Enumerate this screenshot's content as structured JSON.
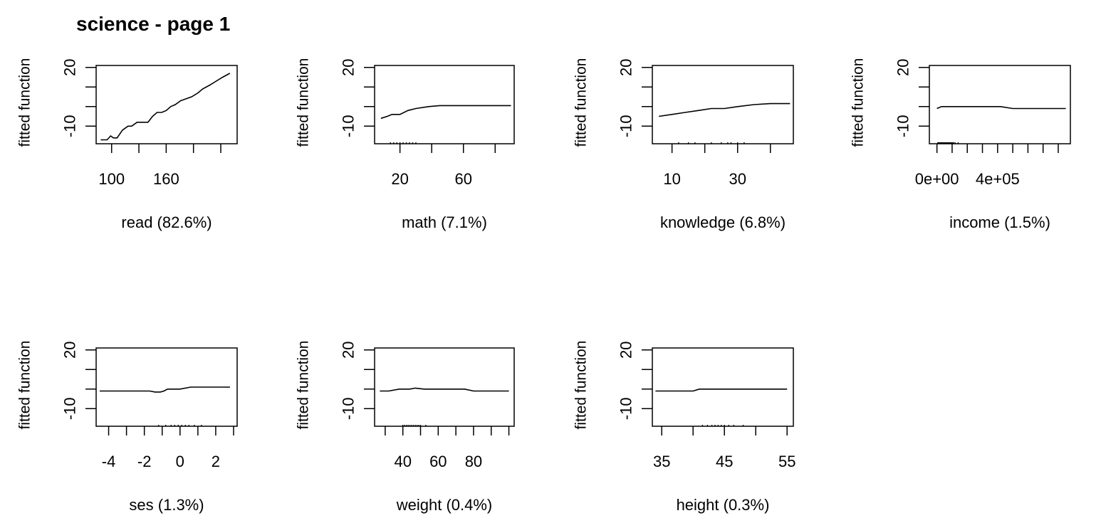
{
  "title": "science - page 1",
  "chart_data": [
    {
      "type": "line",
      "xlabel": "read  (82.6%)",
      "ylabel": "fitted function",
      "xlim": [
        83,
        238
      ],
      "ylim": [
        -19,
        21
      ],
      "yticks": [
        -10,
        20
      ],
      "yminor": [
        0,
        10
      ],
      "xticks": [
        100,
        160
      ],
      "xminor": [
        130,
        190,
        220
      ],
      "x": [
        88,
        95,
        99,
        102,
        106,
        112,
        118,
        122,
        128,
        133,
        140,
        145,
        150,
        155,
        160,
        165,
        170,
        176,
        182,
        188,
        195,
        200,
        208,
        215,
        222,
        230
      ],
      "y": [
        -17,
        -17,
        -15,
        -16,
        -16,
        -12,
        -10,
        -10,
        -8,
        -8,
        -8,
        -5,
        -3,
        -3,
        -2,
        0,
        1,
        3,
        4,
        5,
        7,
        9,
        11,
        13,
        15,
        17
      ],
      "rug": []
    },
    {
      "type": "line",
      "xlabel": "math  (7.1%)",
      "ylabel": "fitted function",
      "xlim": [
        4,
        92
      ],
      "ylim": [
        -19,
        21
      ],
      "yticks": [
        -10,
        20
      ],
      "yminor": [
        0,
        10
      ],
      "xticks": [
        20,
        60
      ],
      "xminor": [
        40,
        80
      ],
      "x": [
        8,
        12,
        15,
        20,
        25,
        30,
        38,
        45,
        60,
        75,
        90
      ],
      "y": [
        -6,
        -5,
        -4,
        -4,
        -2,
        -1,
        0,
        0.5,
        0.5,
        0.5,
        0.5
      ],
      "rug": [
        14,
        16,
        18,
        20,
        22,
        24,
        26,
        28,
        30
      ]
    },
    {
      "type": "line",
      "xlabel": "knowledge  (6.8%)",
      "ylabel": "fitted function",
      "xlim": [
        4,
        47
      ],
      "ylim": [
        -19,
        21
      ],
      "yticks": [
        -10,
        20
      ],
      "yminor": [
        0,
        10
      ],
      "xticks": [
        10,
        30
      ],
      "xminor": [
        20,
        40
      ],
      "x": [
        6,
        10,
        14,
        18,
        22,
        26,
        30,
        35,
        40,
        46
      ],
      "y": [
        -5,
        -4,
        -3,
        -2,
        -1,
        -1,
        0,
        1,
        1.5,
        1.5
      ],
      "rug": [
        12,
        15,
        17,
        22,
        25,
        27,
        28,
        30,
        32
      ]
    },
    {
      "type": "line",
      "xlabel": "income  (1.5%)",
      "ylabel": "fitted function",
      "xlim": [
        -50000,
        880000
      ],
      "ylim": [
        -19,
        21
      ],
      "yticks": [
        -10,
        20
      ],
      "yminor": [
        0,
        10
      ],
      "xticks": [
        0,
        400000
      ],
      "xticklabels": [
        "0e+00",
        "4e+05"
      ],
      "xminor": [
        100000,
        200000,
        300000,
        500000,
        600000,
        700000,
        800000
      ],
      "x": [
        0,
        30000,
        80000,
        200000,
        300000,
        420000,
        500000,
        600000,
        700000,
        850000
      ],
      "y": [
        -1,
        0,
        0,
        0,
        0,
        0,
        -1,
        -1,
        -1,
        -1
      ],
      "rug": [
        5000,
        10000,
        15000,
        20000,
        25000,
        30000,
        35000,
        40000,
        45000,
        50000,
        55000,
        60000,
        65000,
        70000,
        75000,
        80000,
        85000,
        90000,
        95000,
        100000,
        105000,
        110000,
        120000,
        140000
      ]
    },
    {
      "type": "line",
      "xlabel": "ses  (1.3%)",
      "ylabel": "fitted function",
      "xlim": [
        -4.7,
        3.2
      ],
      "ylim": [
        -19,
        21
      ],
      "yticks": [
        -10,
        20
      ],
      "yminor": [
        0,
        10
      ],
      "xticks": [
        -4,
        -2,
        0,
        2
      ],
      "xminor": [
        -3,
        -1,
        1,
        3
      ],
      "x": [
        -4.5,
        -3,
        -1.7,
        -1.4,
        -1.1,
        -0.9,
        -0.7,
        0,
        0.6,
        1,
        2,
        2.8
      ],
      "y": [
        -1,
        -1,
        -1,
        -1.5,
        -1.5,
        -1,
        0,
        0,
        1,
        1,
        1,
        1
      ],
      "rug": [
        -1.2,
        -0.8,
        -0.5,
        -0.3,
        -0.1,
        0.1,
        0.3,
        0.5,
        0.8,
        1.2
      ]
    },
    {
      "type": "line",
      "xlabel": "weight  (0.4%)",
      "ylabel": "fitted function",
      "xlim": [
        24,
        103
      ],
      "ylim": [
        -19,
        21
      ],
      "yticks": [
        -10,
        20
      ],
      "yminor": [
        0,
        10
      ],
      "xticks": [
        40,
        60,
        80
      ],
      "xminor": [
        30,
        50,
        70,
        90,
        100
      ],
      "x": [
        27,
        32,
        38,
        44,
        47,
        52,
        60,
        75,
        80,
        90,
        100
      ],
      "y": [
        -1,
        -1,
        0,
        0,
        0.5,
        0,
        0,
        0,
        -1,
        -1,
        -1
      ],
      "rug": [
        40,
        41,
        42,
        43,
        44,
        45,
        46,
        47,
        48,
        49,
        50,
        53
      ]
    },
    {
      "type": "line",
      "xlabel": "height  (0.3%)",
      "ylabel": "fitted function",
      "xlim": [
        33.5,
        56
      ],
      "ylim": [
        -19,
        21
      ],
      "yticks": [
        -10,
        20
      ],
      "yminor": [
        0,
        10
      ],
      "xticks": [
        35,
        45,
        55
      ],
      "xminor": [
        40,
        50
      ],
      "x": [
        34,
        38,
        40,
        41,
        45,
        50,
        55
      ],
      "y": [
        -1,
        -1,
        -1,
        0,
        0,
        0,
        0
      ],
      "rug": [
        41.5,
        42.3,
        43,
        43.5,
        44,
        44.5,
        45,
        45.7,
        46.5,
        48
      ]
    }
  ]
}
